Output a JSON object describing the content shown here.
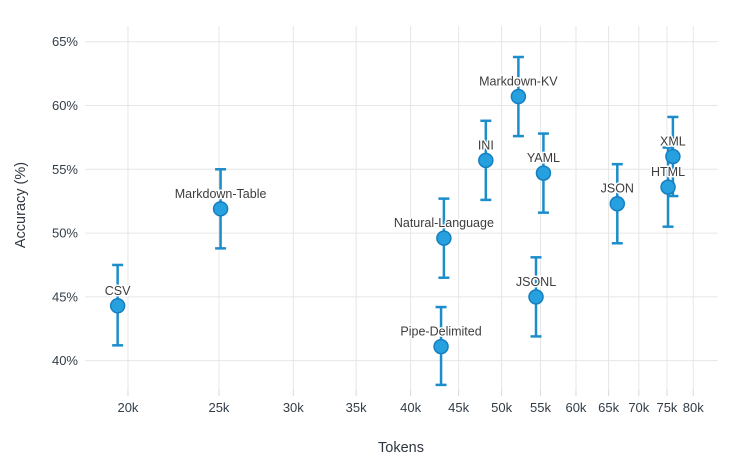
{
  "chart_data": {
    "type": "scatter",
    "title": "",
    "xlabel": "Tokens",
    "ylabel": "Accuracy (%)",
    "grid": true,
    "legend": "none",
    "x_axis": {
      "scale": "log",
      "domain": [
        18000,
        85000
      ],
      "tick_values": [
        20000,
        25000,
        30000,
        35000,
        40000,
        45000,
        50000,
        55000,
        60000,
        65000,
        70000,
        75000,
        80000
      ],
      "tick_labels": [
        "20k",
        "25k",
        "30k",
        "35k",
        "40k",
        "45k",
        "50k",
        "55k",
        "60k",
        "65k",
        "70k",
        "75k",
        "80k"
      ]
    },
    "y_axis": {
      "scale": "linear",
      "domain": [
        37.7,
        66.7
      ],
      "tick_values": [
        40,
        45,
        50,
        55,
        60,
        65
      ],
      "tick_labels": [
        "40%",
        "45%",
        "50%",
        "55%",
        "60%",
        "65%"
      ]
    },
    "points": [
      {
        "label": "CSV",
        "tokens": 19500,
        "accuracy": 44.3,
        "ci_low": 41.2,
        "ci_high": 47.5
      },
      {
        "label": "Markdown-Table",
        "tokens": 25100,
        "accuracy": 51.9,
        "ci_low": 48.8,
        "ci_high": 55.0
      },
      {
        "label": "Natural-Language",
        "tokens": 43400,
        "accuracy": 49.6,
        "ci_low": 46.5,
        "ci_high": 52.7
      },
      {
        "label": "Pipe-Delimited",
        "tokens": 43100,
        "accuracy": 41.1,
        "ci_low": 38.1,
        "ci_high": 44.2
      },
      {
        "label": "INI",
        "tokens": 48100,
        "accuracy": 55.7,
        "ci_low": 52.6,
        "ci_high": 58.8
      },
      {
        "label": "Markdown-KV",
        "tokens": 52100,
        "accuracy": 60.7,
        "ci_low": 57.6,
        "ci_high": 63.8
      },
      {
        "label": "JSONL",
        "tokens": 54400,
        "accuracy": 45.0,
        "ci_low": 41.9,
        "ci_high": 48.1
      },
      {
        "label": "YAML",
        "tokens": 55400,
        "accuracy": 54.7,
        "ci_low": 51.6,
        "ci_high": 57.8
      },
      {
        "label": "JSON",
        "tokens": 66400,
        "accuracy": 52.3,
        "ci_low": 49.2,
        "ci_high": 55.4
      },
      {
        "label": "HTML",
        "tokens": 75200,
        "accuracy": 53.6,
        "ci_low": 50.5,
        "ci_high": 56.7
      },
      {
        "label": "XML",
        "tokens": 76100,
        "accuracy": 56.0,
        "ci_low": 52.9,
        "ci_high": 59.1
      }
    ],
    "colors": {
      "marker_fill": "#27a0df",
      "marker_border": "#157fbf",
      "error_bar": "#1c8dcb",
      "grid": "#e6e6e6",
      "tick_text": "#333d47",
      "axis_title_text": "#2f3640",
      "point_label_text": "#3d3d3d",
      "background": "#ffffff"
    }
  }
}
